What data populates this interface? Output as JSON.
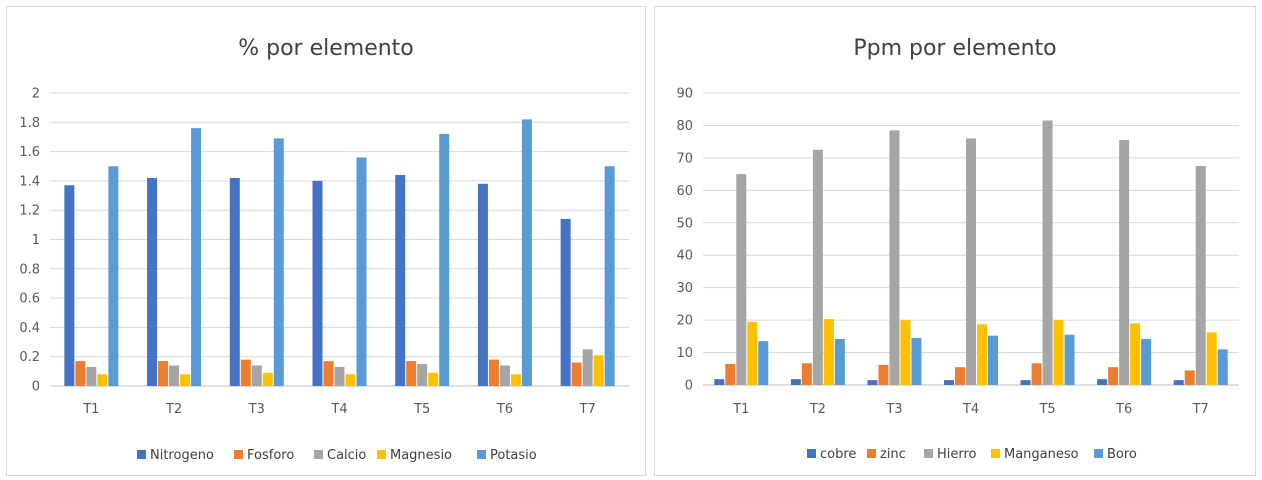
{
  "chart_data": [
    {
      "type": "bar",
      "title": "% por elemento",
      "categories": [
        "T1",
        "T2",
        "T3",
        "T4",
        "T5",
        "T6",
        "T7"
      ],
      "ylim": [
        0,
        2
      ],
      "yticks": [
        "0",
        "0.2",
        "0.4",
        "0.6",
        "0.8",
        "1",
        "1.2",
        "1.4",
        "1.6",
        "1.8",
        "2"
      ],
      "grid": true,
      "legend": "bottom",
      "series": [
        {
          "name": "Nitrogeno",
          "color": "#4472c4",
          "values": [
            1.37,
            1.42,
            1.42,
            1.4,
            1.44,
            1.38,
            1.14
          ]
        },
        {
          "name": "Fosforo",
          "color": "#ed7d31",
          "values": [
            0.17,
            0.17,
            0.18,
            0.17,
            0.17,
            0.18,
            0.16
          ]
        },
        {
          "name": "Calcio",
          "color": "#a5a5a5",
          "values": [
            0.13,
            0.14,
            0.14,
            0.13,
            0.15,
            0.14,
            0.25
          ]
        },
        {
          "name": "Magnesio",
          "color": "#ffc000",
          "values": [
            0.08,
            0.08,
            0.09,
            0.08,
            0.09,
            0.08,
            0.21
          ]
        },
        {
          "name": "Potasio",
          "color": "#5b9bd5",
          "values": [
            1.5,
            1.76,
            1.69,
            1.56,
            1.72,
            1.82,
            1.5
          ]
        }
      ]
    },
    {
      "type": "bar",
      "title": "Ppm por elemento",
      "categories": [
        "T1",
        "T2",
        "T3",
        "T4",
        "T5",
        "T6",
        "T7"
      ],
      "ylim": [
        0,
        90
      ],
      "yticks": [
        "0",
        "10",
        "20",
        "30",
        "40",
        "50",
        "60",
        "70",
        "80",
        "90"
      ],
      "grid": true,
      "legend": "bottom",
      "series": [
        {
          "name": "cobre",
          "color": "#4472c4",
          "values": [
            1.8,
            1.8,
            1.5,
            1.5,
            1.5,
            1.8,
            1.5
          ]
        },
        {
          "name": "zinc",
          "color": "#ed7d31",
          "values": [
            6.5,
            6.7,
            6.2,
            5.5,
            6.7,
            5.5,
            4.5
          ]
        },
        {
          "name": "Hierro",
          "color": "#a5a5a5",
          "values": [
            65.0,
            72.5,
            78.5,
            76.0,
            81.5,
            75.5,
            67.5
          ]
        },
        {
          "name": "Manganeso",
          "color": "#ffc000",
          "values": [
            19.5,
            20.3,
            20.0,
            18.7,
            20.0,
            19.0,
            16.2
          ]
        },
        {
          "name": "Boro",
          "color": "#5b9bd5",
          "values": [
            13.5,
            14.2,
            14.5,
            15.2,
            15.5,
            14.2,
            11.0
          ]
        }
      ]
    }
  ]
}
